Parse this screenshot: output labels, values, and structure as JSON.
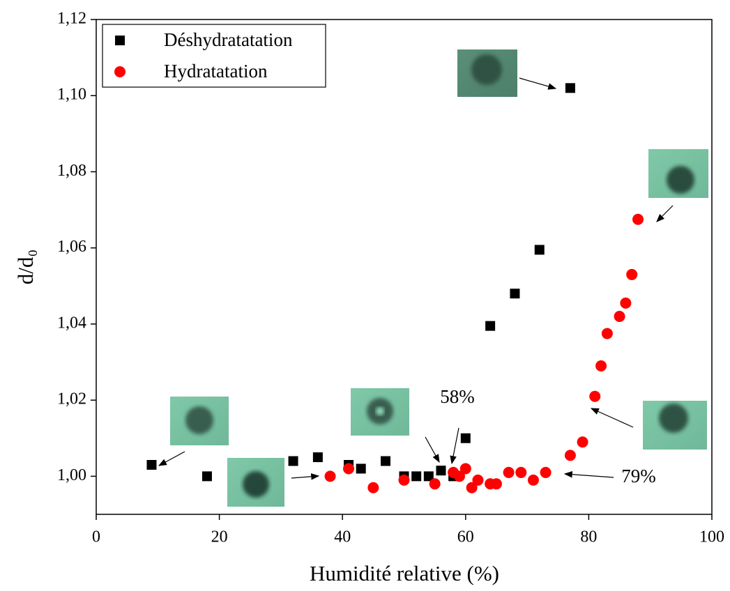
{
  "chart_data": {
    "type": "scatter",
    "x_label": "Humidité relative (%)",
    "y_label": "d/d₀",
    "xlim": [
      0,
      100
    ],
    "xticks": [
      0,
      20,
      40,
      60,
      80,
      100
    ],
    "ylim": [
      0.99,
      1.12
    ],
    "yticks": [
      {
        "value": 1.0,
        "label": "1,00"
      },
      {
        "value": 1.02,
        "label": "1,02"
      },
      {
        "value": 1.04,
        "label": "1,04"
      },
      {
        "value": 1.06,
        "label": "1,06"
      },
      {
        "value": 1.08,
        "label": "1,08"
      },
      {
        "value": 1.1,
        "label": "1,10"
      },
      {
        "value": 1.12,
        "label": "1,12"
      }
    ],
    "legend": "top-left",
    "series": [
      {
        "name": "Déshydratatation",
        "color": "#000000",
        "marker": "square",
        "x": [
          9,
          18,
          32,
          36,
          41,
          43,
          47,
          50,
          52,
          54,
          56,
          58,
          60,
          64,
          68,
          72,
          77
        ],
        "values": [
          1.003,
          1.0,
          1.004,
          1.005,
          1.003,
          1.002,
          1.004,
          1.0,
          1.0,
          1.0,
          1.0015,
          1.0,
          1.01,
          1.0395,
          1.048,
          1.0595,
          1.102
        ]
      },
      {
        "name": "Hydratatation",
        "color": "#ff0000",
        "marker": "circle",
        "x": [
          38,
          41,
          45,
          50,
          55,
          58,
          59,
          60,
          61,
          62,
          64,
          65,
          67,
          69,
          71,
          73,
          77,
          79,
          81,
          82,
          83,
          85,
          86,
          87,
          88
        ],
        "values": [
          1.0,
          1.002,
          0.997,
          0.999,
          0.998,
          1.001,
          1.0,
          1.002,
          0.997,
          0.999,
          0.998,
          0.998,
          1.001,
          1.001,
          0.999,
          1.001,
          1.0055,
          1.009,
          1.021,
          1.029,
          1.0375,
          1.042,
          1.0455,
          1.053,
          1.0675
        ]
      }
    ],
    "annotations": [
      "58%",
      "79%"
    ]
  }
}
